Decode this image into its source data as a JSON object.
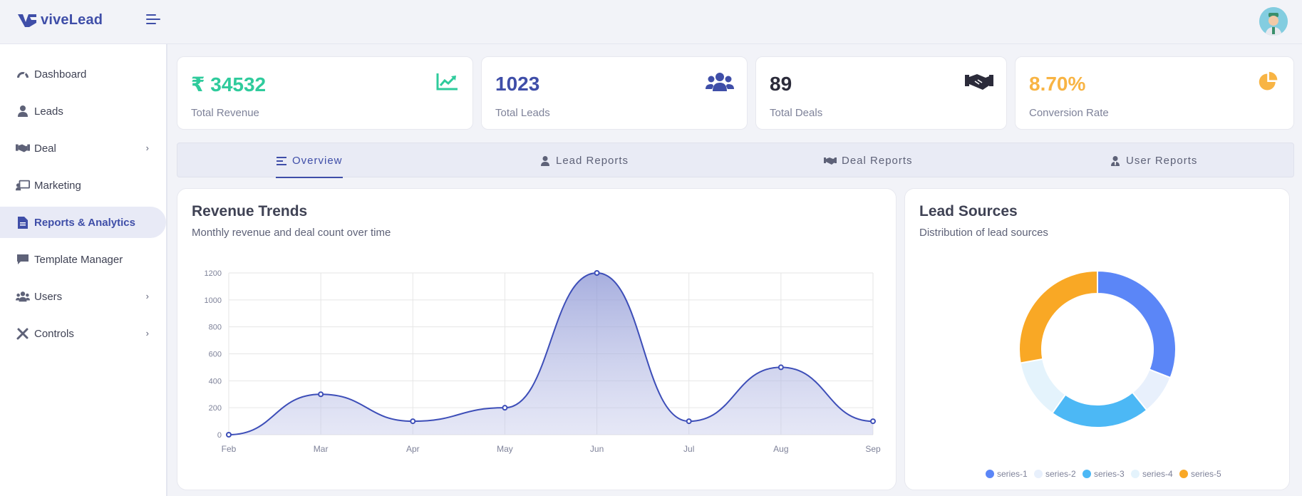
{
  "app": {
    "name": "viveLead"
  },
  "sidebar": {
    "items": [
      {
        "label": "Dashboard",
        "icon": "dashboard-icon",
        "has_chevron": false,
        "active": false
      },
      {
        "label": "Leads",
        "icon": "user-icon",
        "has_chevron": false,
        "active": false
      },
      {
        "label": "Deal",
        "icon": "handshake-icon",
        "has_chevron": true,
        "active": false
      },
      {
        "label": "Marketing",
        "icon": "chalkboard-user-icon",
        "has_chevron": false,
        "active": false
      },
      {
        "label": "Reports & Analytics",
        "icon": "file-report-icon",
        "has_chevron": false,
        "active": true
      },
      {
        "label": "Template Manager",
        "icon": "comment-icon",
        "has_chevron": false,
        "active": false
      },
      {
        "label": "Users",
        "icon": "users-icon",
        "has_chevron": true,
        "active": false
      },
      {
        "label": "Controls",
        "icon": "tools-icon",
        "has_chevron": true,
        "active": false
      }
    ],
    "chevron": "›"
  },
  "stats": [
    {
      "value": "₹ 34532",
      "label": "Total Revenue",
      "color": "#2fcb9c",
      "icon": "chart-line-icon"
    },
    {
      "value": "1023",
      "label": "Total Leads",
      "color": "#3f4ea8",
      "icon": "users-icon"
    },
    {
      "value": "89",
      "label": "Total Deals",
      "color": "#2b2b3a",
      "icon": "handshake-icon"
    },
    {
      "value": "8.70%",
      "label": "Conversion Rate",
      "color": "#f8b444",
      "icon": "pie-chart-icon"
    }
  ],
  "tabs": [
    {
      "label": "Overview",
      "icon": "align-left-icon",
      "active": true
    },
    {
      "label": "Lead Reports",
      "icon": "user-icon",
      "active": false
    },
    {
      "label": "Deal Reports",
      "icon": "handshake-icon",
      "active": false
    },
    {
      "label": "User Reports",
      "icon": "user-tie-icon",
      "active": false
    }
  ],
  "revenue": {
    "title": "Revenue Trends",
    "subtitle": "Monthly revenue and deal count over time"
  },
  "lead_sources": {
    "title": "Lead Sources",
    "subtitle": "Distribution of lead sources"
  },
  "colors": {
    "accent": "#3f4ea8",
    "line": "#3d4eb8"
  },
  "chart_data": [
    {
      "type": "area",
      "x": [
        "Feb",
        "Mar",
        "Apr",
        "May",
        "Jun",
        "Jul",
        "Aug",
        "Sep"
      ],
      "series": [
        {
          "values": [
            0,
            300,
            100,
            200,
            1200,
            100,
            500,
            100
          ]
        }
      ],
      "ylim": [
        0,
        1200
      ],
      "yticks": [
        0,
        200,
        400,
        600,
        800,
        1000,
        1200
      ],
      "grid": true
    },
    {
      "type": "pie",
      "donut": true,
      "series": [
        {
          "name": "series-1",
          "value": 30,
          "color": "#5b86f7"
        },
        {
          "name": "series-2",
          "value": 8,
          "color": "#e8f0fc"
        },
        {
          "name": "series-3",
          "value": 20,
          "color": "#4cb8f5"
        },
        {
          "name": "series-4",
          "value": 12,
          "color": "#e4f3fc"
        },
        {
          "name": "series-5",
          "value": 27,
          "color": "#f9a825"
        }
      ],
      "legend": "bottom"
    }
  ]
}
